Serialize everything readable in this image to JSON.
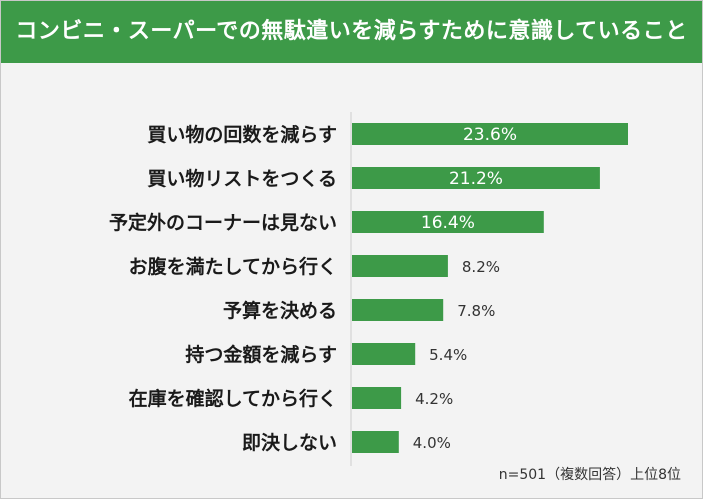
{
  "header": {
    "title": "コンビニ・スーパーでの無駄遣いを減らすために意識していること"
  },
  "footnote": "n=501（複数回答）上位8位",
  "colors": {
    "bar": "#3d9a48",
    "title_bg": "#3d9a48",
    "axis": "#cccccc"
  },
  "chart_data": {
    "type": "bar",
    "orientation": "horizontal",
    "categories": [
      "買い物の回数を減らす",
      "買い物リストをつくる",
      "予定外のコーナーは見ない",
      "お腹を満たしてから行く",
      "予算を決める",
      "持つ金額を減らす",
      "在庫を確認してから行く",
      "即決しない"
    ],
    "values": [
      23.6,
      21.2,
      16.4,
      8.2,
      7.8,
      5.4,
      4.2,
      4.0
    ],
    "value_labels": [
      "23.6%",
      "21.2%",
      "16.4%",
      "8.2%",
      "7.8%",
      "5.4%",
      "4.2%",
      "4.0%"
    ],
    "unit": "%",
    "title": "コンビニ・スーパーでの無駄遣いを減らすために意識していること",
    "xlim": [
      0,
      24
    ],
    "grid": false,
    "legend": "none"
  }
}
